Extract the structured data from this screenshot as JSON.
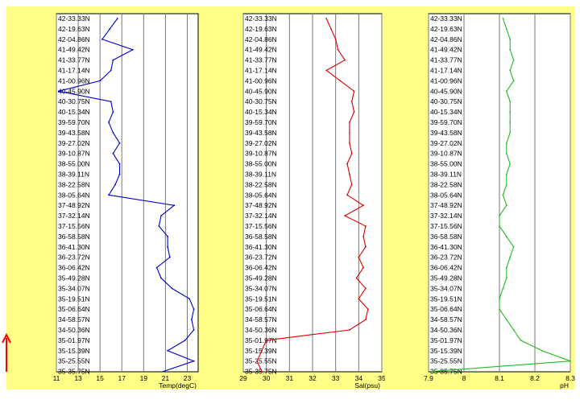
{
  "chart_data": [
    {
      "type": "line",
      "xlabel": "Temp(degC)",
      "xticks": [
        "11",
        "13",
        "15",
        "17",
        "19",
        "21",
        "23"
      ],
      "xlim": [
        11,
        24
      ],
      "color": "#0000cc",
      "y_labels": [
        "42-33.33N",
        "42-19.63N",
        "42-04.86N",
        "41-49.42N",
        "41-33.77N",
        "41-17.14N",
        "41-00.96N",
        "40-45.90N",
        "40-30.75N",
        "40-15.34N",
        "39-59.70N",
        "39-43.58N",
        "39-27.02N",
        "39-10.87N",
        "38-55.00N",
        "38-39.11N",
        "38-22.58N",
        "38-05.64N",
        "37-48.92N",
        "37-32.14N",
        "37-15.56N",
        "36-58.58N",
        "36-41.30N",
        "36-23.72N",
        "36-06.42N",
        "35-49.28N",
        "35-34.07N",
        "35-19.51N",
        "35-06.64N",
        "34-58.57N",
        "34-50.36N",
        "35-01.97N",
        "35-15.39N",
        "35-25.55N",
        "35-35.75N"
      ],
      "y_index": [
        0,
        1,
        2,
        3,
        4,
        5,
        6,
        7,
        8,
        9,
        10,
        11,
        12,
        13,
        14,
        15,
        16,
        17,
        18,
        19,
        20,
        21,
        22,
        23,
        24,
        25,
        26,
        27,
        28,
        29,
        30,
        31,
        32,
        33,
        34
      ],
      "values": [
        16.6,
        15.9,
        15.2,
        18.0,
        16.2,
        16.0,
        15.0,
        11.2,
        16.0,
        16.2,
        15.8,
        16.2,
        16.8,
        16.2,
        16.8,
        16.8,
        16.4,
        15.8,
        21.8,
        20.6,
        20.4,
        21.2,
        21.2,
        21.4,
        20.2,
        20.6,
        21.6,
        23.2,
        23.6,
        23.4,
        23.6,
        22.8,
        21.2,
        23.6,
        20.8
      ]
    },
    {
      "type": "line",
      "xlabel": "Sal(psu)",
      "xticks": [
        "29",
        "30",
        "31",
        "32",
        "33",
        "34",
        "35"
      ],
      "xlim": [
        29,
        35
      ],
      "color": "#dd0000",
      "y_labels": [
        "42-33.33N",
        "42-19.63N",
        "42-04.86N",
        "41-49.42N",
        "41-33.77N",
        "41-17.14N",
        "41-00.96N",
        "40-45.90N",
        "40-30.75N",
        "40-15.34N",
        "39-59.70N",
        "39-43.58N",
        "39-27.02N",
        "39-10.87N",
        "38-55.00N",
        "38-39.11N",
        "38-22.58N",
        "38-05.64N",
        "37-48.92N",
        "37-32.14N",
        "37-15.56N",
        "36-58.58N",
        "36-41.30N",
        "36-23.72N",
        "36-06.42N",
        "35-49.28N",
        "35-34.07N",
        "35-19.51N",
        "35-06.64N",
        "34-58.57N",
        "34-50.36N",
        "35-01.97N",
        "35-15.39N",
        "35-25.55N",
        "35-35.75N"
      ],
      "y_index": [
        0,
        1,
        2,
        3,
        4,
        5,
        6,
        7,
        8,
        9,
        10,
        11,
        12,
        13,
        14,
        15,
        16,
        17,
        18,
        19,
        20,
        21,
        22,
        23,
        24,
        25,
        26,
        27,
        28,
        29,
        30,
        31,
        32,
        33,
        34
      ],
      "values": [
        32.6,
        32.8,
        33.0,
        33.1,
        33.4,
        32.6,
        33.2,
        33.8,
        33.7,
        33.8,
        33.6,
        33.6,
        33.6,
        33.7,
        33.5,
        33.6,
        33.7,
        33.5,
        34.2,
        33.4,
        34.3,
        34.2,
        34.3,
        34.0,
        34.2,
        33.9,
        34.3,
        34.0,
        34.4,
        34.3,
        33.6,
        30.0,
        29.8,
        29.6,
        29.8
      ]
    },
    {
      "type": "line",
      "xlabel": "pH",
      "xticks": [
        "7.9",
        "8",
        "8.1",
        "8.2",
        "8.3"
      ],
      "xlim": [
        7.9,
        8.3
      ],
      "color": "#22bb22",
      "y_labels": [
        "42-33.33N",
        "42-19.63N",
        "42-04.86N",
        "41-49.42N",
        "41-33.77N",
        "41-17.14N",
        "41-00.96N",
        "40-45.90N",
        "40-30.75N",
        "40-15.34N",
        "39-59.70N",
        "39-43.58N",
        "39-27.02N",
        "39-10.87N",
        "38-55.00N",
        "38-39.11N",
        "38-22.58N",
        "38-05.64N",
        "37-48.92N",
        "37-32.14N",
        "37-15.56N",
        "36-58.58N",
        "36-41.30N",
        "36-23.72N",
        "36-06.42N",
        "35-49.28N",
        "35-34.07N",
        "35-19.51N",
        "35-06.64N",
        "34-58.57N",
        "34-50.36N",
        "35-01.97N",
        "35-15.39N",
        "35-25.55N",
        "35-35.75N"
      ],
      "y_index": [
        0,
        1,
        2,
        3,
        4,
        5,
        6,
        7,
        8,
        9,
        10,
        11,
        12,
        13,
        14,
        15,
        16,
        17,
        18,
        19,
        20,
        21,
        22,
        23,
        24,
        25,
        26,
        27,
        28,
        29,
        30,
        31,
        32,
        33,
        34
      ],
      "values": [
        8.11,
        8.12,
        8.13,
        8.13,
        8.14,
        8.13,
        8.14,
        8.12,
        8.13,
        8.13,
        8.13,
        8.13,
        8.12,
        8.12,
        8.13,
        8.12,
        8.12,
        8.11,
        8.12,
        8.1,
        8.1,
        8.12,
        8.14,
        8.13,
        8.12,
        8.12,
        8.11,
        8.1,
        8.1,
        8.12,
        8.14,
        8.16,
        8.22,
        8.3,
        7.91
      ]
    }
  ],
  "arrow_color": "#ff0000",
  "frame_color": "#ffff88"
}
